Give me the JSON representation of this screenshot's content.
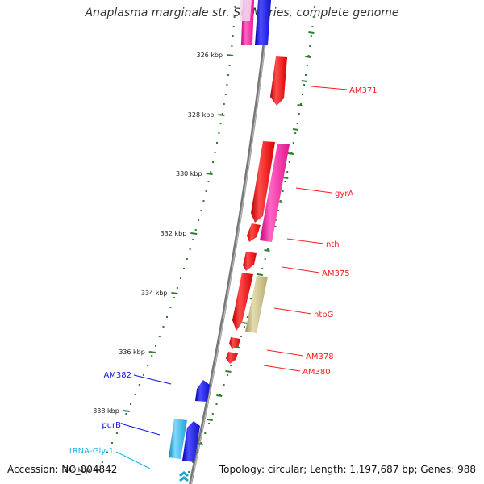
{
  "title": "Anaplasma marginale str. St. Maries, complete genome",
  "footer": {
    "accession": "Accession: NC_004842",
    "topology": "Topology: circular; Length: 1,197,687 bp; Genes: 988"
  },
  "colors": {
    "backbone": "#8a8a8a",
    "tick": "#2e7d32",
    "red": "#ff1a1a",
    "magenta": "#ff1aa8",
    "blue": "#1010e6",
    "cyan": "#1ab3e6",
    "khaki": "#c8bd7e"
  },
  "scale": {
    "labels": [
      "326 kbp",
      "328 kbp",
      "330 kbp",
      "332 kbp",
      "334 kbp",
      "336 kbp",
      "338 kbp",
      "340 kbp"
    ],
    "kbp": [
      326,
      328,
      330,
      332,
      334,
      336,
      338,
      340
    ]
  },
  "gene_labels": [
    {
      "name": "AM371",
      "color": "red"
    },
    {
      "name": "gyrA",
      "color": "red"
    },
    {
      "name": "nth",
      "color": "red"
    },
    {
      "name": "AM375",
      "color": "red"
    },
    {
      "name": "htpG",
      "color": "red"
    },
    {
      "name": "AM378",
      "color": "red"
    },
    {
      "name": "AM380",
      "color": "red"
    },
    {
      "name": "AM382",
      "color": "blue"
    },
    {
      "name": "purB",
      "color": "blue"
    },
    {
      "name": "tRNA-Gly-1",
      "color": "cyan"
    }
  ]
}
